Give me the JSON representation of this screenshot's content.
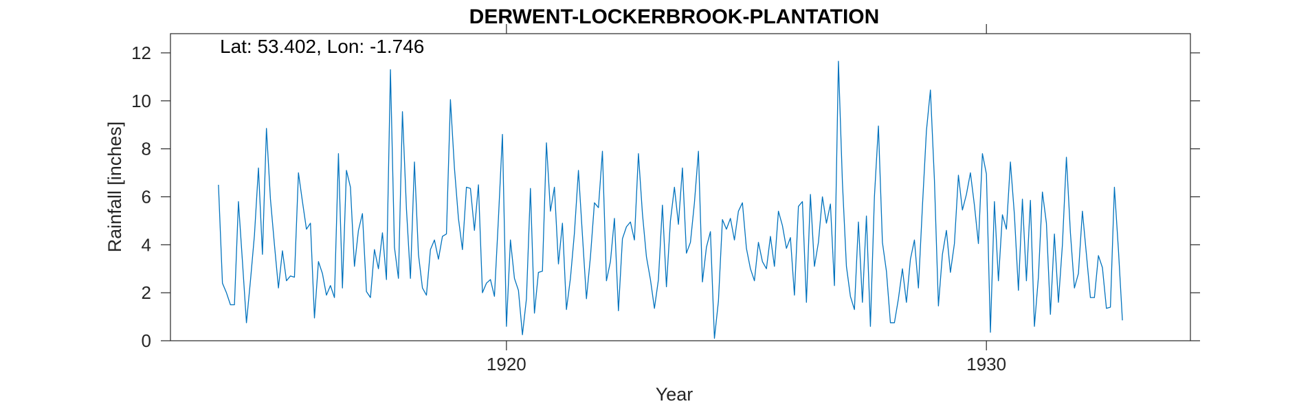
{
  "chart_data": {
    "type": "line",
    "title": "DERWENT-LOCKERBROOK-PLANTATION",
    "xlabel": "Year",
    "ylabel": "Rainfall [inches]",
    "annotation": "Lat: 53.402, Lon: -1.746",
    "xlim": [
      1913.0,
      1934.25
    ],
    "ylim": [
      0,
      12.8
    ],
    "x_ticks": [
      1920,
      1930
    ],
    "x_tick_labels": [
      "1920",
      "1930"
    ],
    "y_ticks": [
      0,
      2,
      4,
      6,
      8,
      10,
      12
    ],
    "y_tick_labels": [
      "0",
      "2",
      "4",
      "6",
      "8",
      "10",
      "12"
    ],
    "grid": false,
    "legend": "none",
    "start_year": 1914,
    "start_month": 1,
    "colors": {
      "line": "#0072BD",
      "axis": "#262626"
    },
    "series": [
      {
        "values": [
          6.5,
          2.4,
          2.0,
          1.5,
          1.5,
          5.8,
          3.3,
          0.75,
          2.5,
          4.4,
          7.2,
          3.6,
          8.85,
          5.9,
          4.0,
          2.2,
          3.75,
          2.5,
          2.7,
          2.65,
          7.0,
          5.8,
          4.65,
          4.9,
          0.95,
          3.3,
          2.8,
          1.9,
          2.3,
          1.8,
          7.8,
          2.2,
          7.1,
          6.4,
          3.1,
          4.6,
          5.3,
          2.05,
          1.8,
          3.8,
          3.0,
          4.5,
          2.55,
          11.3,
          3.9,
          2.6,
          9.55,
          5.5,
          2.6,
          7.45,
          3.6,
          2.2,
          1.9,
          3.8,
          4.2,
          3.4,
          4.35,
          4.45,
          10.05,
          7.2,
          5.1,
          3.8,
          6.4,
          6.35,
          4.6,
          6.5,
          2.0,
          2.4,
          2.55,
          1.85,
          5.1,
          8.6,
          0.6,
          4.2,
          2.6,
          2.1,
          0.25,
          1.75,
          6.35,
          1.15,
          2.85,
          2.9,
          8.25,
          5.4,
          6.4,
          3.2,
          4.9,
          1.3,
          2.6,
          4.5,
          7.1,
          4.4,
          1.75,
          3.5,
          5.75,
          5.55,
          7.9,
          2.5,
          3.3,
          5.1,
          1.25,
          4.25,
          4.75,
          4.95,
          4.2,
          7.8,
          5.3,
          3.5,
          2.55,
          1.35,
          2.55,
          5.65,
          2.25,
          5.0,
          6.4,
          4.85,
          7.2,
          3.65,
          4.1,
          5.75,
          7.9,
          2.45,
          3.9,
          4.55,
          0.1,
          1.65,
          5.05,
          4.65,
          5.1,
          4.2,
          5.4,
          5.75,
          3.85,
          3.0,
          2.5,
          4.1,
          3.3,
          3.0,
          4.35,
          3.1,
          5.4,
          4.8,
          3.85,
          4.3,
          1.9,
          5.6,
          5.8,
          1.6,
          6.1,
          3.1,
          4.1,
          6.0,
          4.9,
          5.7,
          2.3,
          11.65,
          6.6,
          3.1,
          1.85,
          1.3,
          4.95,
          1.6,
          5.2,
          0.6,
          6.0,
          8.95,
          4.1,
          2.9,
          0.75,
          0.75,
          1.75,
          3.0,
          1.6,
          3.4,
          4.2,
          2.2,
          5.6,
          8.75,
          10.45,
          6.7,
          1.45,
          3.6,
          4.6,
          2.85,
          4.05,
          6.9,
          5.45,
          6.1,
          7.0,
          5.65,
          4.05,
          7.8,
          6.95,
          0.35,
          5.8,
          2.5,
          5.25,
          4.65,
          7.45,
          5.25,
          2.1,
          5.9,
          2.5,
          5.85,
          0.6,
          2.65,
          6.2,
          4.9,
          1.1,
          4.45,
          1.6,
          4.0,
          7.65,
          4.5,
          2.2,
          2.8,
          5.4,
          3.6,
          1.8,
          1.8,
          3.55,
          3.05,
          1.35,
          1.4,
          6.4,
          3.8,
          0.85
        ]
      }
    ]
  }
}
